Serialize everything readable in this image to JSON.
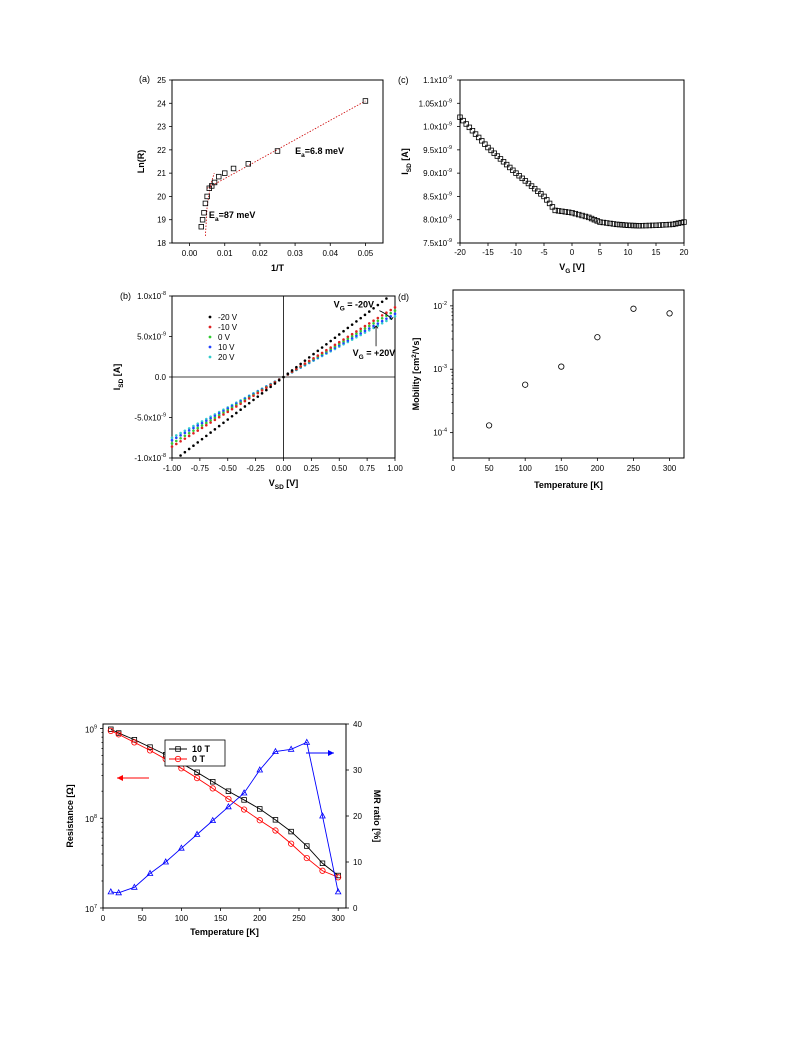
{
  "chart_data": [
    {
      "id": "a",
      "type": "scatter",
      "panel_label": "(a)",
      "xlabel": "1/T",
      "ylabel": "Ln(R)",
      "xlim": [
        -0.005,
        0.055
      ],
      "ylim": [
        18,
        25
      ],
      "x_ticks": [
        "0.00",
        "0.01",
        "0.02",
        "0.03",
        "0.04",
        "0.05"
      ],
      "y_ticks": [
        "18",
        "19",
        "20",
        "21",
        "22",
        "23",
        "24",
        "25"
      ],
      "series": [
        {
          "marker": "open-square",
          "color": "#000000",
          "x": [
            0.00333,
            0.0037,
            0.0041,
            0.0045,
            0.005,
            0.0056,
            0.0063,
            0.0071,
            0.0083,
            0.01,
            0.0125,
            0.0167,
            0.025,
            0.05
          ],
          "y": [
            18.7,
            19.0,
            19.3,
            19.7,
            20.0,
            20.35,
            20.45,
            20.6,
            20.85,
            21.0,
            21.2,
            21.4,
            21.95,
            24.1
          ]
        }
      ],
      "fit_lines": [
        {
          "color": "#cc0000",
          "x": [
            0.0045,
            0.005,
            0.006,
            0.007
          ],
          "y": [
            18.3,
            19.6,
            20.5,
            21.0
          ]
        },
        {
          "color": "#cc0000",
          "x": [
            0.005,
            0.05
          ],
          "y": [
            20.35,
            24.1
          ]
        }
      ],
      "annotations": [
        {
          "text": "Ea=6.8 meV",
          "main": "E",
          "sub": "a",
          "rest": "=6.8 meV",
          "x": 0.03,
          "y": 21.95
        },
        {
          "text": "Ea=87 meV",
          "main": "E",
          "sub": "a",
          "rest": "=87 meV",
          "x": 0.0055,
          "y": 19.2
        }
      ]
    },
    {
      "id": "c",
      "type": "scatter",
      "panel_label": "(c)",
      "xlabel_main": "V",
      "xlabel_sub": "G",
      "xlabel_rest": " [V]",
      "ylabel_main": "I",
      "ylabel_sub": "SD",
      "ylabel_rest": " [A]",
      "xlim": [
        -20,
        20
      ],
      "ylim": [
        7.5e-09,
        1.1e-08
      ],
      "x_ticks": [
        "-20",
        "-15",
        "-10",
        "-5",
        "0",
        "5",
        "10",
        "15",
        "20"
      ],
      "y_ticks": [
        "7.5x10",
        "8.0x10",
        "8.5x10",
        "9.0x10",
        "9.5x10",
        "1.0x10",
        "1.05x10",
        "1.1x10"
      ],
      "y_tick_exp": "-9",
      "y_tick_values": [
        7.5,
        8.0,
        8.5,
        9.0,
        9.5,
        10.0,
        10.5,
        11.0
      ],
      "series": [
        {
          "marker": "open-square",
          "color": "#000000",
          "x": [
            -20,
            -15,
            -10,
            -5,
            -3,
            0,
            3,
            5,
            8,
            10,
            12,
            15,
            18,
            20
          ],
          "y": [
            1.02e-08,
            9.55e-09,
            9e-09,
            8.5e-09,
            8.2e-09,
            8.15e-09,
            8.05e-09,
            7.95e-09,
            7.9e-09,
            7.88e-09,
            7.87e-09,
            7.88e-09,
            7.9e-09,
            7.95e-09
          ]
        }
      ]
    },
    {
      "id": "b",
      "type": "line",
      "panel_label": "(b)",
      "xlabel_main": "V",
      "xlabel_sub": "SD",
      "xlabel_rest": " [V]",
      "ylabel_main": "I",
      "ylabel_sub": "SD",
      "ylabel_rest": " [A]",
      "xlim": [
        -1.0,
        1.0
      ],
      "ylim": [
        -1e-08,
        1e-08
      ],
      "x_ticks": [
        "-1.00",
        "-0.75",
        "-0.50",
        "-0.25",
        "0.00",
        "0.25",
        "0.50",
        "0.75",
        "1.00"
      ],
      "y_ticks": [
        "-1.0x10",
        "-5.0x10",
        "0.0",
        "5.0x10",
        "1.0x10"
      ],
      "y_tick_exps": [
        "-8",
        "-9",
        "",
        "-9",
        "-8"
      ],
      "legend_position": "top-left",
      "series": [
        {
          "name": "-20 V",
          "color": "#000000",
          "slope": 1.05e-08
        },
        {
          "name": "-10 V",
          "color": "#dd2222",
          "slope": 8.6e-09
        },
        {
          "name": "0 V",
          "color": "#33cc33",
          "slope": 8.2e-09
        },
        {
          "name": "10 V",
          "color": "#2244ff",
          "slope": 7.8e-09
        },
        {
          "name": "20 V",
          "color": "#33cccc",
          "slope": 7.5e-09
        }
      ],
      "annotations": [
        {
          "main": "V",
          "sub": "G",
          "rest": " = -20V",
          "x": 0.45,
          "y": 8.6e-09
        },
        {
          "main": "V",
          "sub": "G",
          "rest": " = +20V",
          "x": 0.62,
          "y": 2.6e-09
        }
      ]
    },
    {
      "id": "d",
      "type": "scatter",
      "panel_label": "(d)",
      "xlabel": "Temperature [K]",
      "ylabel_main": "Mobility [cm",
      "ylabel_sup": "2",
      "ylabel_rest": "/Vs]",
      "xlim": [
        0,
        320
      ],
      "ylim_log10": [
        -4.4,
        -1.75
      ],
      "log_y": true,
      "x_ticks": [
        "0",
        "50",
        "100",
        "150",
        "200",
        "250",
        "300"
      ],
      "y_ticks": [
        "10",
        "10",
        "10"
      ],
      "y_tick_exps": [
        "-4",
        "-3",
        "-2"
      ],
      "series": [
        {
          "marker": "open-circle",
          "color": "#000000",
          "x": [
            50,
            100,
            150,
            200,
            250,
            300
          ],
          "y": [
            0.00013,
            0.00057,
            0.0011,
            0.0032,
            0.009,
            0.0076
          ]
        }
      ]
    },
    {
      "id": "mr",
      "type": "line",
      "xlabel": "Temperature [K]",
      "ylabel": "Resistance [Ω]",
      "y2label": "MR ratio [%]",
      "xlim": [
        0,
        310
      ],
      "ylim_log10": [
        7,
        9.05
      ],
      "log_y": true,
      "y2lim": [
        0,
        40
      ],
      "x_ticks": [
        "0",
        "50",
        "100",
        "150",
        "200",
        "250",
        "300"
      ],
      "y_ticks": [
        "10",
        "10",
        "10"
      ],
      "y_tick_exps": [
        "7",
        "8",
        "9"
      ],
      "y2_ticks": [
        "0",
        "10",
        "20",
        "30",
        "40"
      ],
      "legend_position": "top-left",
      "series": [
        {
          "name": "10 T",
          "color": "#000000",
          "marker": "open-square",
          "axis": "left",
          "x": [
            10,
            20,
            40,
            60,
            80,
            100,
            120,
            140,
            160,
            180,
            200,
            220,
            240,
            260,
            280,
            300
          ],
          "y": [
            980000000.0,
            890000000.0,
            750000000.0,
            620000000.0,
            510000000.0,
            410000000.0,
            325000000.0,
            255000000.0,
            200000000.0,
            160000000.0,
            127000000.0,
            96000000.0,
            71000000.0,
            49000000.0,
            31500000.0,
            23000000.0
          ]
        },
        {
          "name": "0 T",
          "color": "#ff0000",
          "marker": "open-circle",
          "axis": "left",
          "x": [
            10,
            20,
            40,
            60,
            80,
            100,
            120,
            140,
            160,
            180,
            200,
            220,
            240,
            260,
            280,
            300
          ],
          "y": [
            940000000.0,
            860000000.0,
            700000000.0,
            570000000.0,
            455000000.0,
            360000000.0,
            280000000.0,
            215000000.0,
            164000000.0,
            125000000.0,
            95000000.0,
            73000000.0,
            52000000.0,
            36000000.0,
            26000000.0,
            22000000.0
          ]
        },
        {
          "name": "MR ratio",
          "color": "#0000ff",
          "marker": "open-triangle",
          "axis": "right",
          "x": [
            10,
            20,
            40,
            60,
            80,
            100,
            120,
            140,
            160,
            180,
            200,
            220,
            240,
            260,
            280,
            300
          ],
          "y": [
            3.5,
            3.3,
            4.5,
            7.5,
            10,
            13,
            16,
            19,
            22,
            25,
            30,
            34,
            34.5,
            36,
            20,
            3.5
          ]
        }
      ],
      "arrows": [
        {
          "direction": "left",
          "color": "#ff0000"
        },
        {
          "direction": "right",
          "color": "#0000ff"
        }
      ]
    }
  ]
}
